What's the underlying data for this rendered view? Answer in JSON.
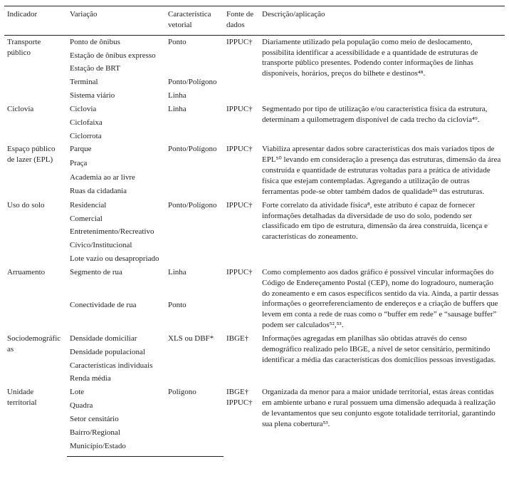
{
  "columns": {
    "c1": "Indicador",
    "c2": "Variação",
    "c3": "Característica\nvetorial",
    "c4": "Fonte de\ndados",
    "c5": "Descrição/aplicação"
  },
  "groups": [
    {
      "indicator": "Transporte público",
      "rows": [
        {
          "variation": "Ponto de ônibus",
          "vector": "Ponto"
        },
        {
          "variation": "Estação de ônibus expresso",
          "vector": ""
        },
        {
          "variation": "Estação de BRT",
          "vector": ""
        },
        {
          "variation": "Terminal",
          "vector": "Ponto/Polígono"
        },
        {
          "variation": "Sistema viário",
          "vector": "Linha"
        }
      ],
      "source": "IPPUC†",
      "description": "Diariamente utilizado pela população como meio de deslocamento, possibilita identificar a acessibilidade e a quantidade de estruturas de transporte público presentes. Podendo conter informações de linhas disponíveis, horários, preços do bilhete e destinos⁴⁸."
    },
    {
      "indicator": "Ciclovia",
      "rows": [
        {
          "variation": "Ciclovia",
          "vector": "Linha"
        },
        {
          "variation": "Ciclofaixa",
          "vector": ""
        },
        {
          "variation": "Ciclorrota",
          "vector": ""
        }
      ],
      "source": "IPPUC†",
      "description": "Segmentado por tipo de utilização e/ou característica física da estrutura, determinam a quilometragem disponível de cada trecho da ciclovia⁴⁹."
    },
    {
      "indicator": "Espaço público de lazer (EPL)",
      "rows": [
        {
          "variation": "Parque",
          "vector": "Ponto/Polígono"
        },
        {
          "variation": "Praça",
          "vector": ""
        },
        {
          "variation": "Academia ao ar livre",
          "vector": ""
        },
        {
          "variation": "Ruas da cidadania",
          "vector": ""
        }
      ],
      "source": "IPPUC†",
      "description": "Viabiliza apresentar dados sobre características dos mais variados tipos de EPL⁵⁰ levando em consideração a presença das estruturas, dimensão da área construída e quantidade de estruturas voltadas para a prática de atividade física que estejam contempladas. Agregando a utilização de outras ferramentas pode-se obter também dados de qualidade⁵¹ das estruturas."
    },
    {
      "indicator": "Uso do solo",
      "rows": [
        {
          "variation": "Residencial",
          "vector": "Ponto/Polígono"
        },
        {
          "variation": "Comercial",
          "vector": ""
        },
        {
          "variation": "Entretenimento/Recreativo",
          "vector": ""
        },
        {
          "variation": "Cívico/Institucional",
          "vector": ""
        },
        {
          "variation": "Lote vazio ou desapropriado",
          "vector": ""
        }
      ],
      "source": "IPPUC†",
      "description": "Forte correlato da atividade física⁸, este atributo é capaz de fornecer informações detalhadas da diversidade de uso do solo, podendo ser classificado em tipo de estrutura, dimensão da área construída, licença e características do zoneamento."
    },
    {
      "indicator": "Arruamento",
      "rows": [
        {
          "variation": "Segmento de rua",
          "vector": "Linha"
        },
        {
          "variation": "Conectividade de rua",
          "vector": "Ponto"
        }
      ],
      "source": "IPPUC†",
      "description": "Como complemento aos dados gráfico é possível vincular informações do Código de Endereçamento Postal (CEP), nome do logradouro, numeração do zoneamento e em casos específicos sentido da via. Ainda, a partir dessas informações o georreferenciamento de endereços e a criação de buffers que levem em conta a rede de ruas como o “buffer em rede” e “sausage buffer” podem ser calculados⁵²,⁵³."
    },
    {
      "indicator": "Sociodemográficas",
      "rows": [
        {
          "variation": "Densidade domiciliar",
          "vector": "XLS ou DBF*"
        },
        {
          "variation": "Densidade populacional",
          "vector": ""
        },
        {
          "variation": "Características individuais",
          "vector": ""
        },
        {
          "variation": "Renda média",
          "vector": ""
        }
      ],
      "source": "IBGE†",
      "description": "Informações agregadas em planilhas são obtidas através do censo demográfico realizado pelo IBGE, a nível de setor censitário, permitindo identificar a média das características dos domicílios pessoas investigadas."
    },
    {
      "indicator": "Unidade territorial",
      "rows": [
        {
          "variation": "Lote",
          "vector": "Polígono"
        },
        {
          "variation": "Quadra",
          "vector": ""
        },
        {
          "variation": "Setor censitário",
          "vector": ""
        },
        {
          "variation": "Bairro/Regional",
          "vector": ""
        },
        {
          "variation": "Município/Estado",
          "vector": ""
        }
      ],
      "source": "IBGE†\nIPPUC†",
      "description": "Organizada da menor para a maior unidade territorial, estas áreas contidas em ambiente urbano e rural possuem uma dimensão adequada à realização de levantamentos que seu conjunto esgote totalidade territorial, garantindo sua plena cobertura⁵³."
    }
  ]
}
